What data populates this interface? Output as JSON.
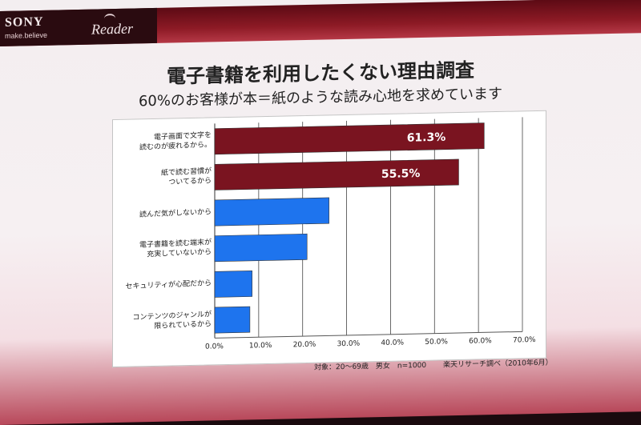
{
  "header": {
    "sony": "SONY",
    "makebelieve": "make.believe",
    "reader": "Reader"
  },
  "title": "電子書籍を利用したくない理由調査",
  "subtitle": "60%のお客様が本＝紙のような読み心地を求めています",
  "chart_data": {
    "type": "bar",
    "orientation": "horizontal",
    "categories": [
      "電子画面で文字を\n読むのが疲れるから。",
      "紙で読む習慣が\nついてるから",
      "読んだ気がしないから",
      "電子書籍を読む端末が\n充実していないから",
      "セキュリティが心配だから",
      "コンテンツのジャンルが\n限られているから"
    ],
    "values": [
      61.3,
      55.5,
      26.0,
      21.0,
      8.5,
      8.0
    ],
    "data_labels": [
      "61.3%",
      "55.5%",
      "",
      "",
      "",
      ""
    ],
    "bar_colors": [
      "#7a1420",
      "#7a1420",
      "#1e74ee",
      "#1e74ee",
      "#1e74ee",
      "#1e74ee"
    ],
    "xlim": [
      0,
      70
    ],
    "x_ticks": [
      "0.0%",
      "10.0%",
      "20.0%",
      "30.0%",
      "40.0%",
      "50.0%",
      "60.0%",
      "70.0%"
    ],
    "grid": true
  },
  "footnote": {
    "target": "対象：20〜69歳　男女　n=1000",
    "source": "楽天リサーチ調べ（2010年6月）"
  },
  "colors": {
    "accent_dark_red": "#7a1420",
    "blue": "#1e74ee"
  }
}
